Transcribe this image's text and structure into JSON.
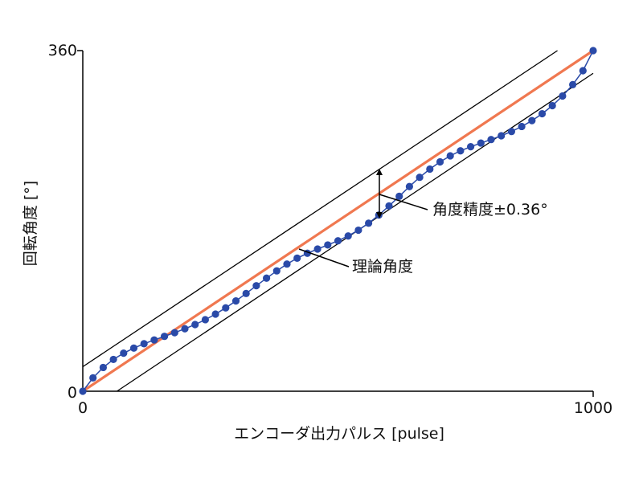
{
  "chart_data": {
    "type": "line",
    "xlabel": "エンコーダ出力パルス [pulse]",
    "ylabel": "回転角度 [°]",
    "xlim": [
      0,
      1000
    ],
    "ylim": [
      0,
      360
    ],
    "x_ticks": [
      "0",
      "1000"
    ],
    "y_ticks": [
      "0",
      "360"
    ],
    "grid": false,
    "series": [
      {
        "name": "理論角度",
        "color": "#f07850",
        "x": [
          0,
          1000
        ],
        "y": [
          0,
          360
        ]
      },
      {
        "name": "",
        "color": "#000000",
        "x": [
          0,
          930
        ],
        "y": [
          25.9,
          360
        ]
      },
      {
        "name": "",
        "color": "#000000",
        "x": [
          67,
          1000
        ],
        "y": [
          0,
          336
        ]
      },
      {
        "name": "",
        "color": "#2a4aa8",
        "x": [
          0,
          20,
          40,
          60,
          80,
          100,
          120,
          140,
          160,
          180,
          200,
          220,
          240,
          260,
          280,
          300,
          320,
          340,
          360,
          380,
          400,
          420,
          440,
          460,
          480,
          500,
          520,
          540,
          560,
          580,
          600,
          620,
          640,
          660,
          680,
          700,
          720,
          740,
          760,
          780,
          800,
          820,
          840,
          860,
          880,
          900,
          920,
          940,
          960,
          980,
          1000
        ],
        "y": [
          0,
          14.1,
          25.1,
          33.6,
          40.2,
          45.6,
          50.2,
          54.2,
          58.0,
          61.9,
          66.0,
          70.5,
          75.6,
          81.5,
          88.1,
          95.4,
          103.3,
          111.5,
          119.5,
          127.2,
          134.4,
          140.6,
          145.8,
          150.3,
          154.6,
          159.0,
          164.1,
          170.2,
          177.6,
          186.2,
          195.8,
          206.0,
          216.3,
          226.1,
          234.8,
          242.4,
          248.8,
          254.1,
          258.4,
          262.3,
          266.0,
          270.0,
          274.5,
          279.8,
          286.0,
          293.3,
          301.8,
          312.0,
          324.0,
          338.8,
          360.0
        ]
      }
    ],
    "annotations": [
      {
        "text": "角度精度±0.36°",
        "x": 580,
        "y": 185
      },
      {
        "text": "理論角度",
        "x": 420,
        "y": 150
      }
    ]
  }
}
